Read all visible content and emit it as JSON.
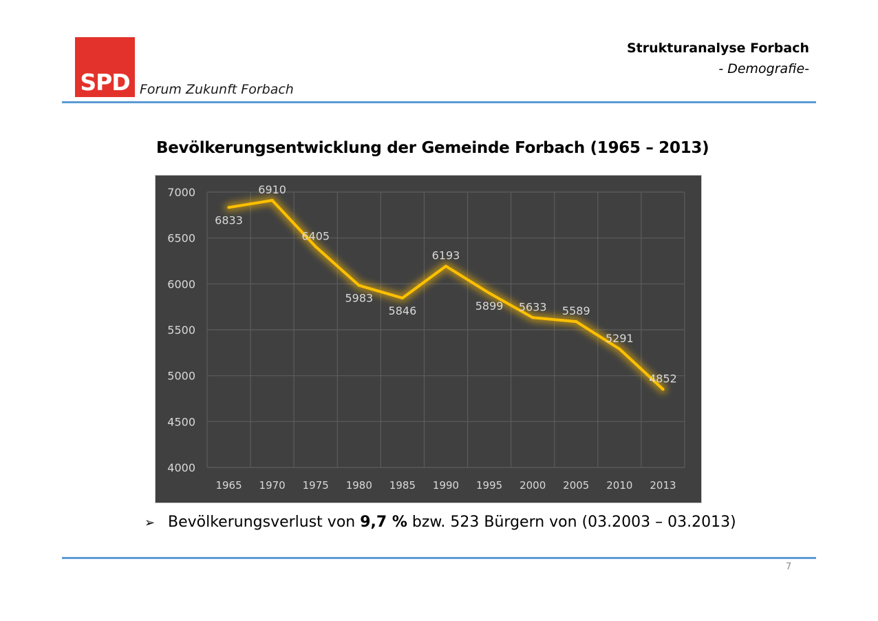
{
  "header": {
    "logo_text": "SPD",
    "forum": "Forum Zukunft Forbach",
    "title": "Strukturanalyse Forbach",
    "subtitle": "- Demografie-"
  },
  "slide_title": "Bevölkerungsentwicklung der Gemeinde Forbach (1965 – 2013)",
  "bullet": {
    "arrow": "➢",
    "text_before": "Bevölkerungsverlust von ",
    "text_bold": "9,7 %",
    "text_after": " bzw. 523 Bürgern von (03.2003 – 03.2013)"
  },
  "page_number": "7",
  "colors": {
    "logo": "#e3322b",
    "rule": "#5b9bd5",
    "chart_background": "#404040",
    "line": "#ffc000",
    "label": "#d9d9d9"
  },
  "chart_data": {
    "type": "line",
    "categories": [
      "1965",
      "1970",
      "1975",
      "1980",
      "1985",
      "1990",
      "1995",
      "2000",
      "2005",
      "2010",
      "2013"
    ],
    "series": [
      {
        "values": [
          6833,
          6910,
          6405,
          5983,
          5846,
          6193,
          5899,
          5633,
          5589,
          5291,
          4852
        ]
      }
    ],
    "data_labels": [
      "6833",
      "6910",
      "6405",
      "5983",
      "5846",
      "6193",
      "5899",
      "5633",
      "5589",
      "5291",
      "4852"
    ],
    "y_ticks": [
      "4000",
      "4500",
      "5000",
      "5500",
      "6000",
      "6500",
      "7000"
    ],
    "ylim": [
      4000,
      7000
    ],
    "grid": true,
    "legend": "none",
    "title": "",
    "xlabel": "",
    "ylabel": ""
  }
}
